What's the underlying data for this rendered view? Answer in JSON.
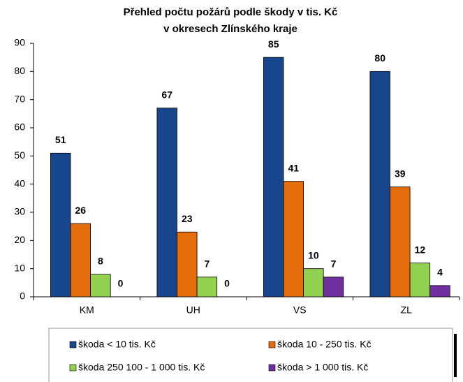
{
  "chart_data": {
    "type": "bar",
    "title": [
      "Přehled počtu požárů podle škody v tis. Kč",
      "v okresech Zlínského kraje"
    ],
    "categories": [
      "KM",
      "UH",
      "VS",
      "ZL"
    ],
    "series": [
      {
        "name": "škoda < 10 tis. Kč",
        "color": "#17468c",
        "values": [
          51,
          67,
          85,
          80
        ]
      },
      {
        "name": "škoda 10 - 250 tis. Kč",
        "color": "#e46c0a",
        "values": [
          26,
          23,
          41,
          39
        ]
      },
      {
        "name": "škoda 250 100 - 1 000 tis. Kč",
        "color": "#92d050",
        "values": [
          8,
          7,
          10,
          12
        ]
      },
      {
        "name": "škoda > 1 000 tis. Kč",
        "color": "#7030a0",
        "values": [
          0,
          0,
          7,
          4
        ]
      }
    ],
    "ylim": [
      0,
      90
    ],
    "yticks": [
      0,
      10,
      20,
      30,
      40,
      50,
      60,
      70,
      80,
      90
    ],
    "grid": false,
    "legend": "bottom"
  }
}
